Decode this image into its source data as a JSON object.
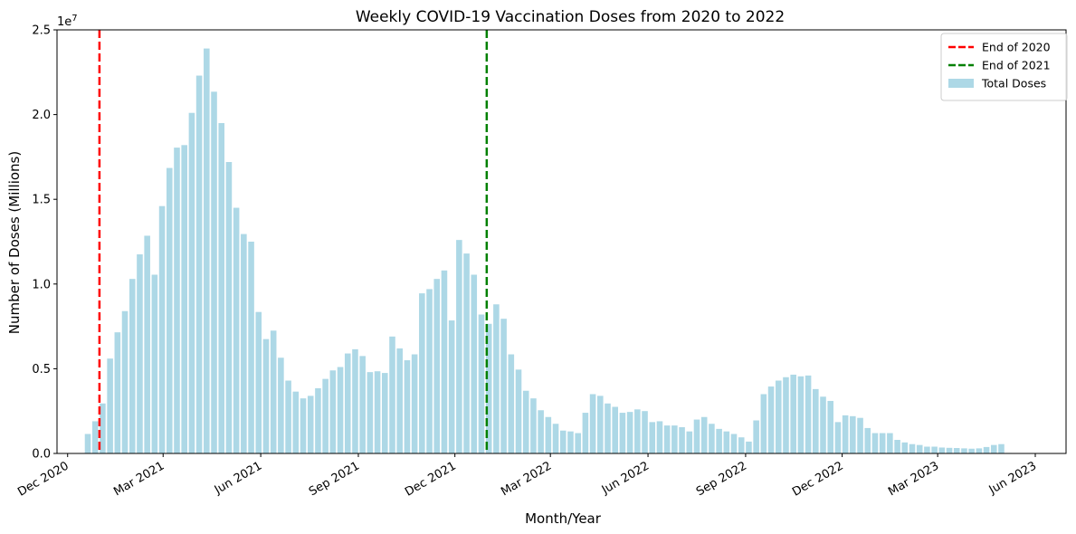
{
  "chart_data": {
    "type": "bar",
    "title": "Weekly COVID-19 Vaccination Doses from 2020 to 2022",
    "xlabel": "Month/Year",
    "ylabel": "Number of Doses (Millions)",
    "y_offset_label": "1e7",
    "ylim": [
      0,
      25000000
    ],
    "xlim": [
      "2020-11-21",
      "2023-06-30"
    ],
    "grid": false,
    "legend_position": "top-right",
    "y_ticks": [
      {
        "value": 0,
        "label": "0.0"
      },
      {
        "value": 5000000,
        "label": "0.5"
      },
      {
        "value": 10000000,
        "label": "1.0"
      },
      {
        "value": 15000000,
        "label": "1.5"
      },
      {
        "value": 20000000,
        "label": "2.0"
      },
      {
        "value": 25000000,
        "label": "2.5"
      }
    ],
    "x_ticks": [
      {
        "date": "2020-12-01",
        "label": "Dec 2020"
      },
      {
        "date": "2021-03-01",
        "label": "Mar 2021"
      },
      {
        "date": "2021-06-01",
        "label": "Jun 2021"
      },
      {
        "date": "2021-09-01",
        "label": "Sep 2021"
      },
      {
        "date": "2021-12-01",
        "label": "Dec 2021"
      },
      {
        "date": "2022-03-01",
        "label": "Mar 2022"
      },
      {
        "date": "2022-06-01",
        "label": "Jun 2022"
      },
      {
        "date": "2022-09-01",
        "label": "Sep 2022"
      },
      {
        "date": "2022-12-01",
        "label": "Dec 2022"
      },
      {
        "date": "2023-03-01",
        "label": "Mar 2023"
      },
      {
        "date": "2023-06-01",
        "label": "Jun 2023"
      }
    ],
    "reference_lines": [
      {
        "name": "End of 2020",
        "date": "2020-12-31",
        "color": "#ff0000"
      },
      {
        "name": "End of 2021",
        "date": "2021-12-31",
        "color": "#008000"
      }
    ],
    "series": [
      {
        "name": "Total Doses",
        "color": "#add8e6",
        "dates": [
          "2020-12-20",
          "2020-12-27",
          "2021-01-03",
          "2021-01-10",
          "2021-01-17",
          "2021-01-24",
          "2021-01-31",
          "2021-02-07",
          "2021-02-14",
          "2021-02-21",
          "2021-02-28",
          "2021-03-07",
          "2021-03-14",
          "2021-03-21",
          "2021-03-28",
          "2021-04-04",
          "2021-04-11",
          "2021-04-18",
          "2021-04-25",
          "2021-05-02",
          "2021-05-09",
          "2021-05-16",
          "2021-05-23",
          "2021-05-30",
          "2021-06-06",
          "2021-06-13",
          "2021-06-20",
          "2021-06-27",
          "2021-07-04",
          "2021-07-11",
          "2021-07-18",
          "2021-07-25",
          "2021-08-01",
          "2021-08-08",
          "2021-08-15",
          "2021-08-22",
          "2021-08-29",
          "2021-09-05",
          "2021-09-12",
          "2021-09-19",
          "2021-09-26",
          "2021-10-03",
          "2021-10-10",
          "2021-10-17",
          "2021-10-24",
          "2021-10-31",
          "2021-11-07",
          "2021-11-14",
          "2021-11-21",
          "2021-11-28",
          "2021-12-05",
          "2021-12-12",
          "2021-12-19",
          "2021-12-26",
          "2022-01-02",
          "2022-01-09",
          "2022-01-16",
          "2022-01-23",
          "2022-01-30",
          "2022-02-06",
          "2022-02-13",
          "2022-02-20",
          "2022-02-27",
          "2022-03-06",
          "2022-03-13",
          "2022-03-20",
          "2022-03-27",
          "2022-04-03",
          "2022-04-10",
          "2022-04-17",
          "2022-04-24",
          "2022-05-01",
          "2022-05-08",
          "2022-05-15",
          "2022-05-22",
          "2022-05-29",
          "2022-06-05",
          "2022-06-12",
          "2022-06-19",
          "2022-06-26",
          "2022-07-03",
          "2022-07-10",
          "2022-07-17",
          "2022-07-24",
          "2022-07-31",
          "2022-08-07",
          "2022-08-14",
          "2022-08-21",
          "2022-08-28",
          "2022-09-04",
          "2022-09-11",
          "2022-09-18",
          "2022-09-25",
          "2022-10-02",
          "2022-10-09",
          "2022-10-16",
          "2022-10-23",
          "2022-10-30",
          "2022-11-06",
          "2022-11-13",
          "2022-11-20",
          "2022-11-27",
          "2022-12-04",
          "2022-12-11",
          "2022-12-18",
          "2022-12-25",
          "2023-01-01",
          "2023-01-08",
          "2023-01-15",
          "2023-01-22",
          "2023-01-29",
          "2023-02-05",
          "2023-02-12",
          "2023-02-19",
          "2023-02-26",
          "2023-03-05",
          "2023-03-12",
          "2023-03-19",
          "2023-03-26",
          "2023-04-02",
          "2023-04-09",
          "2023-04-16",
          "2023-04-23",
          "2023-04-30",
          "2023-05-07",
          "2023-05-14"
        ],
        "values": [
          1150000,
          1900000,
          2950000,
          5600000,
          7150000,
          8400000,
          10300000,
          11750000,
          12850000,
          10550000,
          14600000,
          16850000,
          18050000,
          18200000,
          20100000,
          22300000,
          23900000,
          21350000,
          19500000,
          17200000,
          14500000,
          12950000,
          12500000,
          8350000,
          6750000,
          7250000,
          5650000,
          4300000,
          3650000,
          3250000,
          3400000,
          3850000,
          4400000,
          4900000,
          5100000,
          5900000,
          6150000,
          5750000,
          4800000,
          4850000,
          4750000,
          6900000,
          6200000,
          5500000,
          5850000,
          9450000,
          9700000,
          10300000,
          10800000,
          7850000,
          12600000,
          11800000,
          10550000,
          8200000,
          7650000,
          8800000,
          7950000,
          5850000,
          4950000,
          3700000,
          3250000,
          2550000,
          2150000,
          1750000,
          1350000,
          1300000,
          1200000,
          2400000,
          3500000,
          3400000,
          2950000,
          2750000,
          2400000,
          2450000,
          2600000,
          2500000,
          1850000,
          1900000,
          1650000,
          1650000,
          1550000,
          1300000,
          2000000,
          2150000,
          1750000,
          1450000,
          1300000,
          1150000,
          950000,
          700000,
          1950000,
          3500000,
          3950000,
          4300000,
          4500000,
          4650000,
          4550000,
          4600000,
          3800000,
          3350000,
          3100000,
          1850000,
          2250000,
          2200000,
          2100000,
          1500000,
          1200000,
          1200000,
          1200000,
          800000,
          650000,
          550000,
          500000,
          400000,
          400000,
          350000,
          330000,
          320000,
          300000,
          280000,
          300000,
          380000,
          500000,
          550000,
          30000,
          20000
        ]
      }
    ]
  }
}
